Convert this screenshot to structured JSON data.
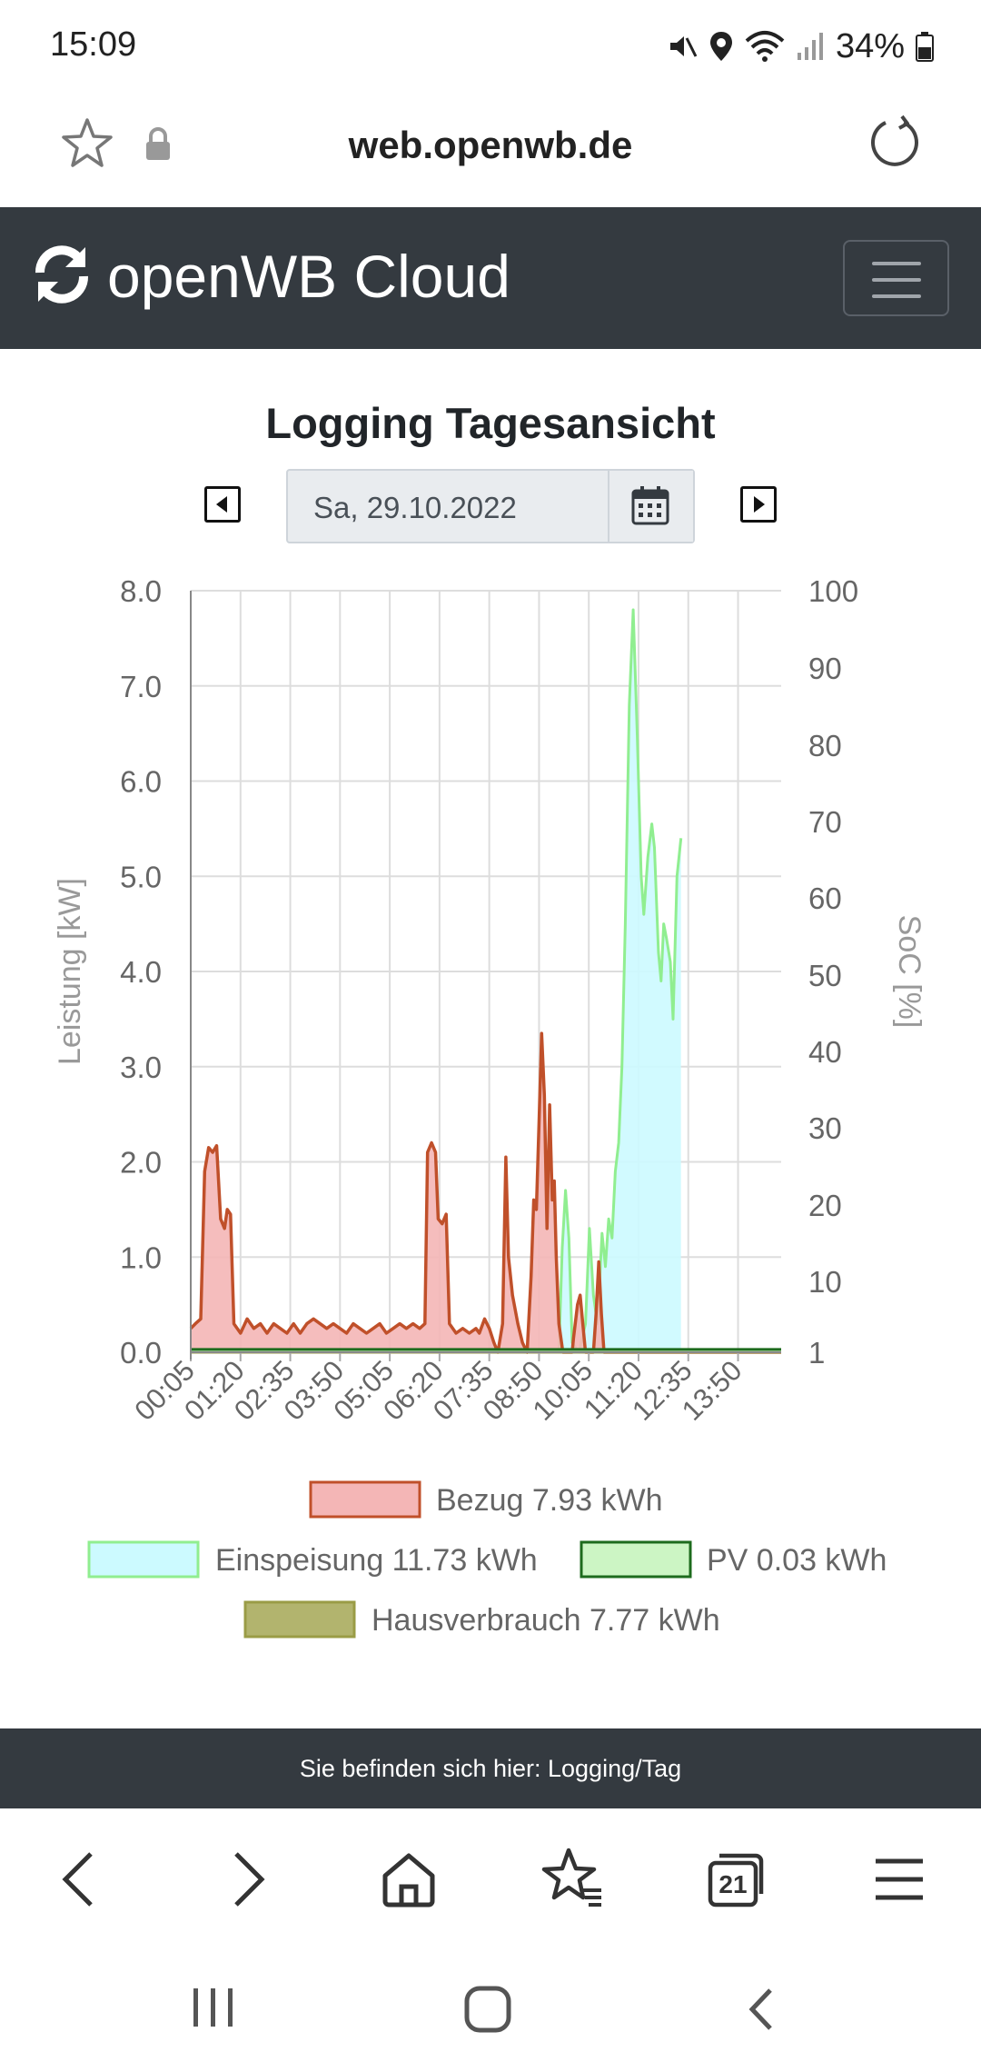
{
  "status_bar": {
    "time": "15:09",
    "battery": "34%"
  },
  "browser": {
    "url": "web.openwb.de",
    "tab_count": "21"
  },
  "navbar": {
    "brand": "openWB Cloud"
  },
  "page": {
    "title": "Logging Tagesansicht",
    "date": "Sa, 29.10.2022"
  },
  "footer": {
    "text": "Sie befinden sich hier: Logging/Tag"
  },
  "colors": {
    "navbar_bg": "#343a40",
    "bezug_line": "#c0502a",
    "bezug_fill": "#f4b6b6",
    "einspeisung_line": "#90ee90",
    "einspeisung_fill": "#ccfaff",
    "pv_line": "#1d6b1d",
    "pv_fill": "#ccf5c4",
    "haus_fill": "#b2b46e",
    "haus_line": "#9a9c46"
  },
  "chart_data": {
    "type": "area",
    "ylabel": "Leistung [kW]",
    "y2label": "SoC [%]",
    "ylim": [
      0,
      8
    ],
    "yticks": [
      "0.0",
      "1.0",
      "2.0",
      "3.0",
      "4.0",
      "5.0",
      "6.0",
      "7.0",
      "8.0"
    ],
    "y2ticks": [
      "1",
      "10",
      "20",
      "30",
      "40",
      "50",
      "60",
      "70",
      "80",
      "90",
      "100"
    ],
    "xlim": [
      5,
      895
    ],
    "xticks": [
      "00:05",
      "01:20",
      "02:35",
      "03:50",
      "05:05",
      "06:20",
      "07:35",
      "08:50",
      "10:05",
      "11:20",
      "12:35",
      "13:50"
    ],
    "grid": true,
    "legend": [
      {
        "label": "Bezug 7.93 kWh",
        "series": "bezug"
      },
      {
        "label": "Einspeisung 11.73 kWh",
        "series": "einspeisung"
      },
      {
        "label": "PV 0.03 kWh",
        "series": "pv"
      },
      {
        "label": "Hausverbrauch 7.77 kWh",
        "series": "haus"
      }
    ],
    "series": [
      {
        "key": "bezug",
        "points": [
          [
            5,
            0.25
          ],
          [
            12,
            0.3
          ],
          [
            20,
            0.35
          ],
          [
            26,
            1.9
          ],
          [
            32,
            2.15
          ],
          [
            38,
            2.1
          ],
          [
            44,
            2.17
          ],
          [
            50,
            1.4
          ],
          [
            56,
            1.3
          ],
          [
            60,
            1.5
          ],
          [
            65,
            1.45
          ],
          [
            70,
            0.3
          ],
          [
            80,
            0.2
          ],
          [
            90,
            0.35
          ],
          [
            100,
            0.25
          ],
          [
            110,
            0.3
          ],
          [
            120,
            0.2
          ],
          [
            130,
            0.3
          ],
          [
            140,
            0.25
          ],
          [
            150,
            0.2
          ],
          [
            160,
            0.3
          ],
          [
            170,
            0.2
          ],
          [
            180,
            0.3
          ],
          [
            190,
            0.35
          ],
          [
            200,
            0.3
          ],
          [
            210,
            0.25
          ],
          [
            220,
            0.3
          ],
          [
            230,
            0.25
          ],
          [
            240,
            0.2
          ],
          [
            250,
            0.3
          ],
          [
            260,
            0.25
          ],
          [
            270,
            0.2
          ],
          [
            280,
            0.25
          ],
          [
            290,
            0.3
          ],
          [
            300,
            0.2
          ],
          [
            310,
            0.25
          ],
          [
            320,
            0.3
          ],
          [
            330,
            0.25
          ],
          [
            340,
            0.3
          ],
          [
            350,
            0.25
          ],
          [
            358,
            0.3
          ],
          [
            362,
            2.1
          ],
          [
            368,
            2.2
          ],
          [
            374,
            2.1
          ],
          [
            378,
            1.4
          ],
          [
            384,
            1.35
          ],
          [
            390,
            1.45
          ],
          [
            395,
            0.3
          ],
          [
            405,
            0.2
          ],
          [
            415,
            0.25
          ],
          [
            425,
            0.2
          ],
          [
            435,
            0.25
          ],
          [
            440,
            0.2
          ],
          [
            448,
            0.35
          ],
          [
            455,
            0.25
          ],
          [
            462,
            0.1
          ],
          [
            468,
            0.0
          ],
          [
            475,
            0.3
          ],
          [
            480,
            2.05
          ],
          [
            484,
            1.0
          ],
          [
            490,
            0.6
          ],
          [
            498,
            0.3
          ],
          [
            505,
            0.1
          ],
          [
            512,
            0.0
          ],
          [
            518,
            0.8
          ],
          [
            522,
            1.6
          ],
          [
            526,
            1.5
          ],
          [
            530,
            2.4
          ],
          [
            534,
            3.35
          ],
          [
            538,
            2.7
          ],
          [
            542,
            1.3
          ],
          [
            546,
            2.6
          ],
          [
            550,
            1.6
          ],
          [
            553,
            1.8
          ],
          [
            556,
            1.0
          ],
          [
            560,
            0.3
          ],
          [
            566,
            0.0
          ],
          [
            570,
            0.0
          ],
          [
            580,
            0.0
          ],
          [
            582,
            0.15
          ],
          [
            588,
            0.5
          ],
          [
            592,
            0.6
          ],
          [
            596,
            0.3
          ],
          [
            600,
            0.0
          ],
          [
            612,
            0.0
          ],
          [
            616,
            0.4
          ],
          [
            620,
            0.95
          ],
          [
            624,
            0.4
          ],
          [
            628,
            0.0
          ],
          [
            895,
            0.0
          ]
        ]
      },
      {
        "key": "einspeisung",
        "points": [
          [
            5,
            0.0
          ],
          [
            560,
            0.0
          ],
          [
            565,
            1.1
          ],
          [
            570,
            1.7
          ],
          [
            575,
            1.2
          ],
          [
            580,
            0.1
          ],
          [
            590,
            0.0
          ],
          [
            600,
            0.3
          ],
          [
            606,
            1.3
          ],
          [
            612,
            0.6
          ],
          [
            618,
            0.3
          ],
          [
            625,
            1.25
          ],
          [
            630,
            0.9
          ],
          [
            635,
            1.4
          ],
          [
            640,
            1.2
          ],
          [
            645,
            1.9
          ],
          [
            650,
            2.2
          ],
          [
            655,
            3.0
          ],
          [
            660,
            4.5
          ],
          [
            666,
            6.8
          ],
          [
            672,
            7.8
          ],
          [
            678,
            6.5
          ],
          [
            684,
            5.0
          ],
          [
            688,
            4.6
          ],
          [
            694,
            5.2
          ],
          [
            700,
            5.55
          ],
          [
            704,
            5.3
          ],
          [
            710,
            4.2
          ],
          [
            714,
            3.9
          ],
          [
            718,
            4.5
          ],
          [
            722,
            4.35
          ],
          [
            728,
            4.1
          ],
          [
            732,
            3.5
          ],
          [
            738,
            5.0
          ],
          [
            744,
            5.4
          ]
        ]
      },
      {
        "key": "pv",
        "points": [
          [
            5,
            0.03
          ],
          [
            895,
            0.03
          ]
        ]
      },
      {
        "key": "haus",
        "points": [
          [
            5,
            0.0
          ],
          [
            895,
            0.0
          ]
        ]
      }
    ]
  }
}
